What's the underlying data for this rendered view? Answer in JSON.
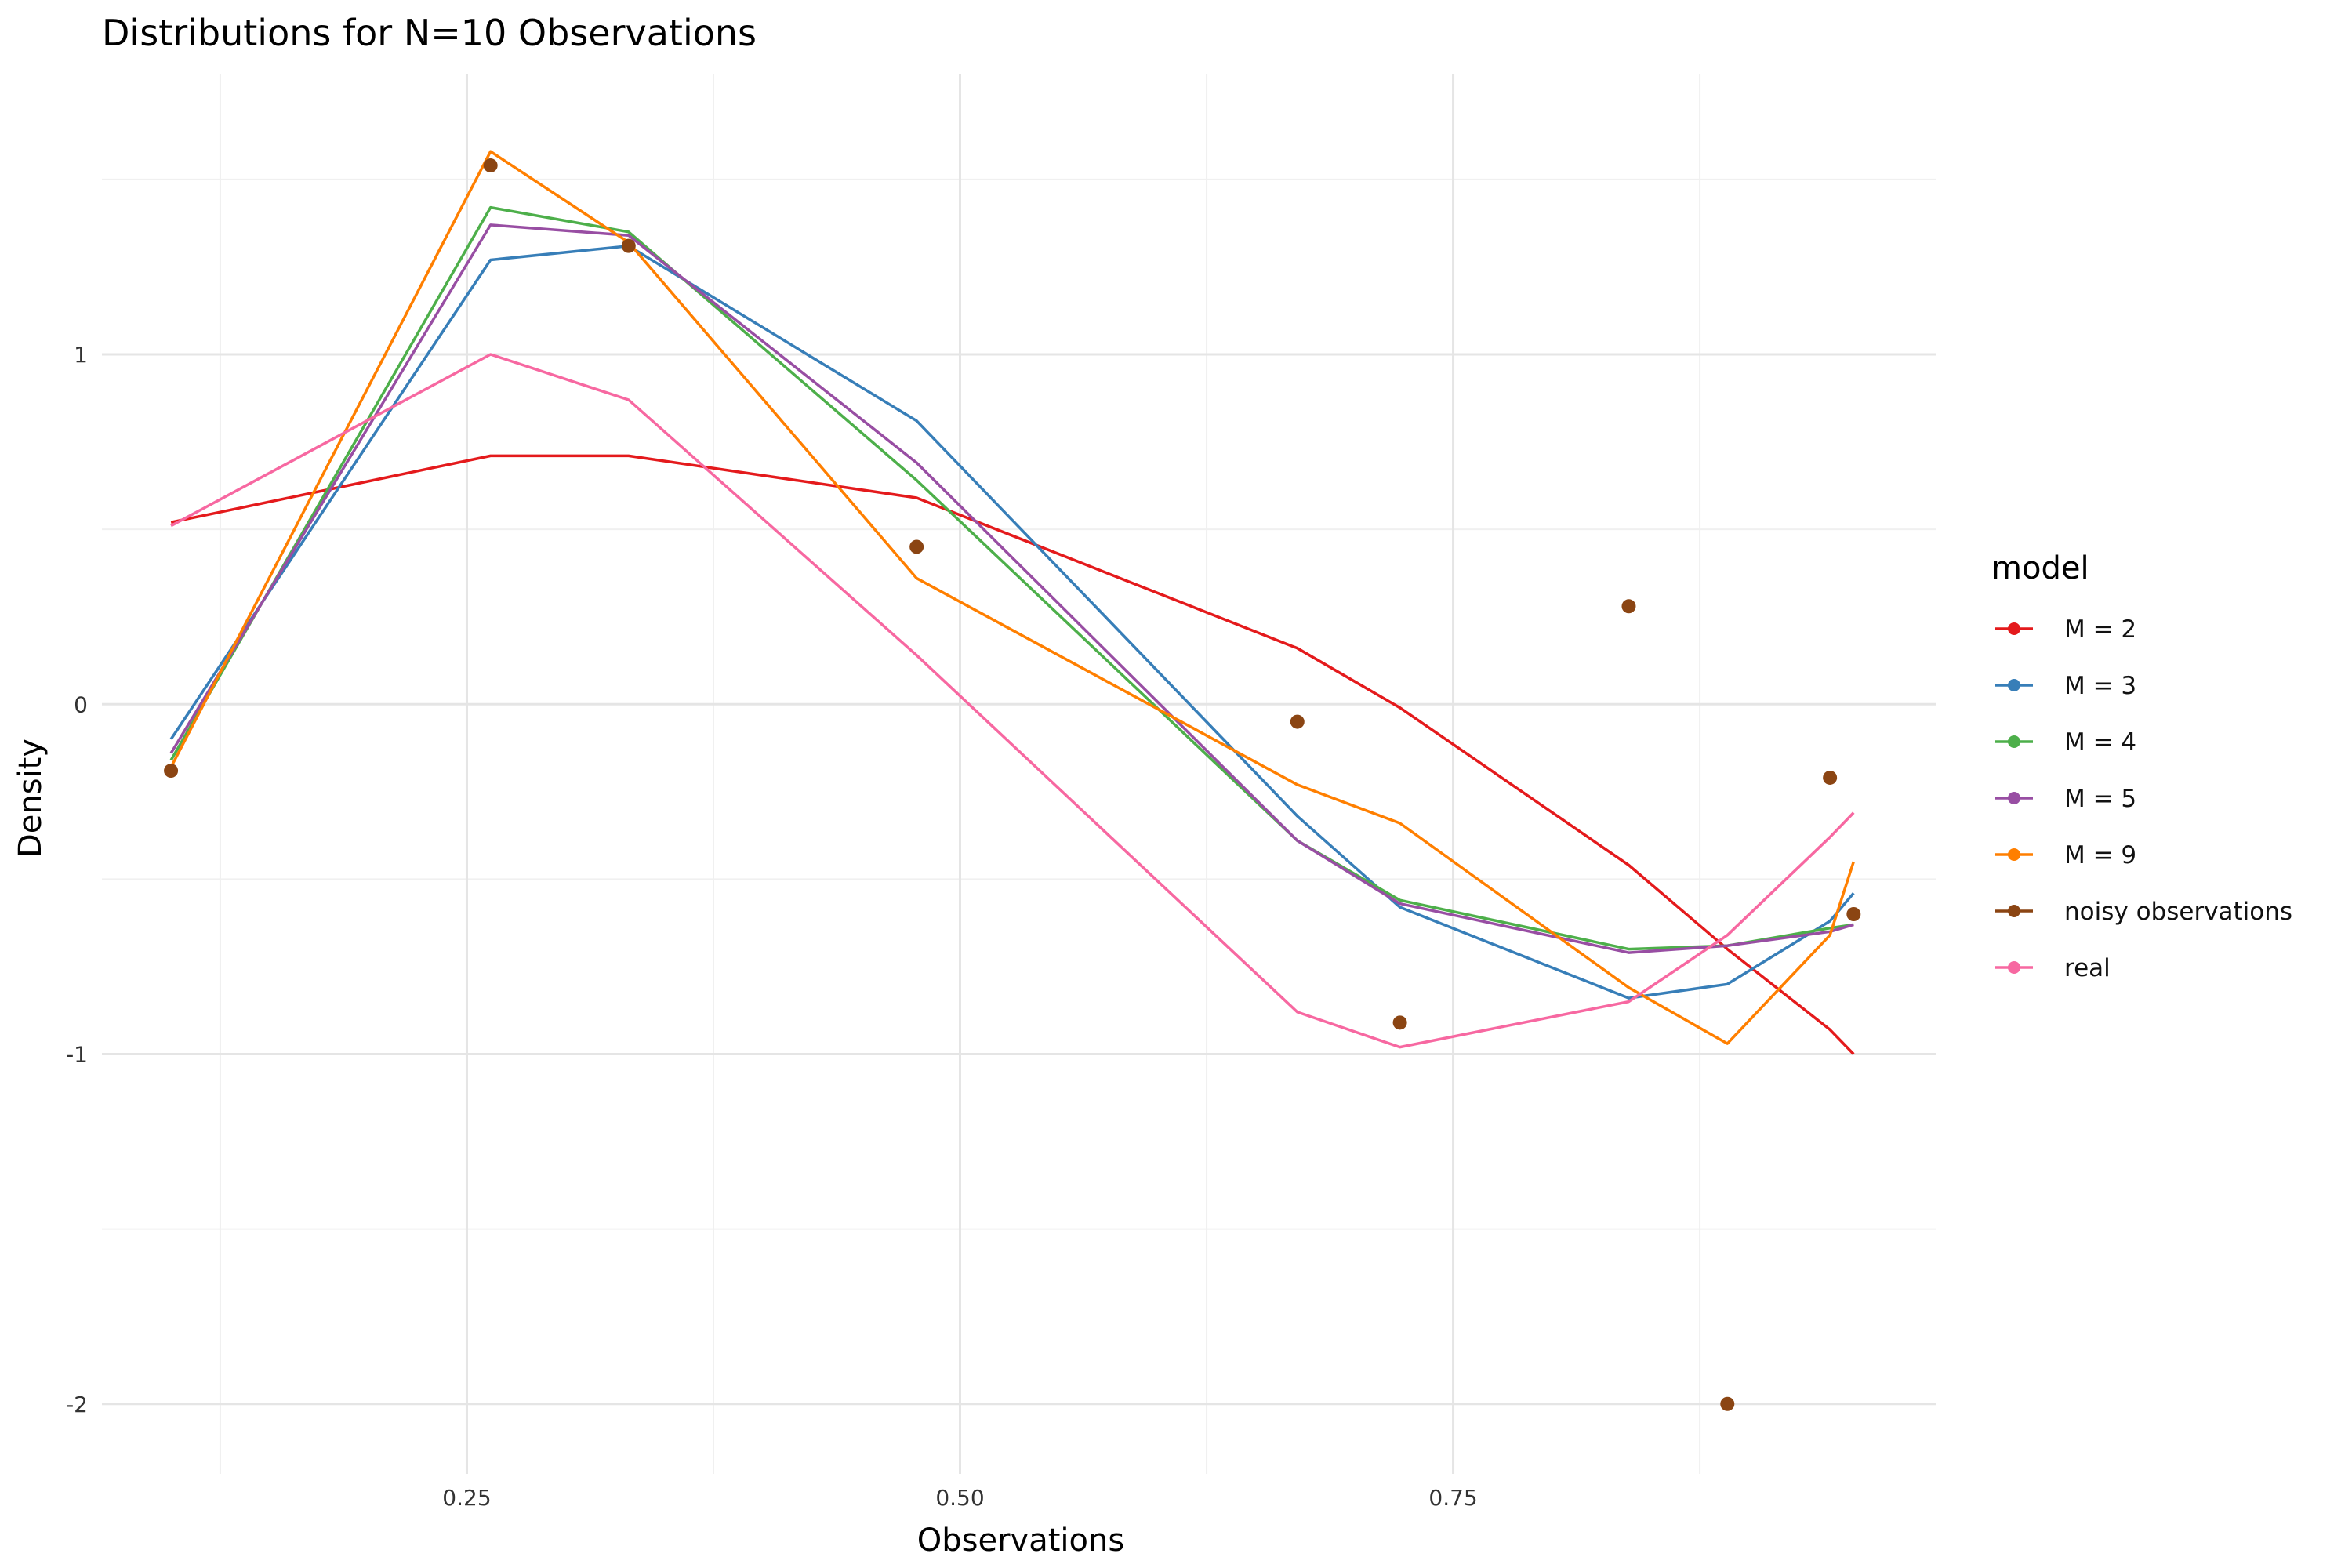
{
  "chart_data": {
    "type": "line",
    "title": "Distributions for N=10 Observations",
    "xlabel": "Observations",
    "ylabel": "Density",
    "xlim": [
      0.065,
      0.995
    ],
    "ylim": [
      -2.2,
      1.8
    ],
    "x_ticks": [
      0.25,
      0.5,
      0.75
    ],
    "x_tick_labels": [
      "0.25",
      "0.50",
      "0.75"
    ],
    "y_ticks": [
      1,
      0,
      -1,
      -2
    ],
    "y_tick_labels": [
      "1",
      "0",
      "-1",
      "-2"
    ],
    "grid": true,
    "legend_title": "model",
    "legend_position": "right",
    "series": [
      {
        "name": "M = 2",
        "color": "#e41a1c",
        "kind": "line",
        "x": [
          0.1,
          0.262,
          0.332,
          0.478,
          0.671,
          0.723,
          0.839,
          0.889,
          0.941,
          0.953
        ],
        "y": [
          0.52,
          0.71,
          0.71,
          0.59,
          0.16,
          -0.01,
          -0.46,
          -0.7,
          -0.93,
          -1.0
        ]
      },
      {
        "name": "M = 3",
        "color": "#377eb8",
        "kind": "line",
        "x": [
          0.1,
          0.262,
          0.332,
          0.478,
          0.671,
          0.723,
          0.839,
          0.889,
          0.941,
          0.953
        ],
        "y": [
          -0.1,
          1.27,
          1.31,
          0.81,
          -0.32,
          -0.58,
          -0.84,
          -0.8,
          -0.62,
          -0.54
        ]
      },
      {
        "name": "M = 4",
        "color": "#4daf4a",
        "kind": "line",
        "x": [
          0.1,
          0.262,
          0.332,
          0.478,
          0.671,
          0.723,
          0.839,
          0.889,
          0.941,
          0.953
        ],
        "y": [
          -0.16,
          1.42,
          1.35,
          0.64,
          -0.39,
          -0.56,
          -0.7,
          -0.69,
          -0.64,
          -0.63
        ]
      },
      {
        "name": "M = 5",
        "color": "#984ea3",
        "kind": "line",
        "x": [
          0.1,
          0.262,
          0.332,
          0.478,
          0.671,
          0.723,
          0.839,
          0.889,
          0.941,
          0.953
        ],
        "y": [
          -0.14,
          1.37,
          1.34,
          0.69,
          -0.39,
          -0.57,
          -0.71,
          -0.69,
          -0.65,
          -0.63
        ]
      },
      {
        "name": "M = 9",
        "color": "#ff7f00",
        "kind": "line",
        "x": [
          0.1,
          0.262,
          0.332,
          0.478,
          0.671,
          0.723,
          0.839,
          0.889,
          0.941,
          0.953
        ],
        "y": [
          -0.18,
          1.58,
          1.32,
          0.36,
          -0.23,
          -0.34,
          -0.81,
          -0.97,
          -0.66,
          -0.45
        ]
      },
      {
        "name": "noisy observations",
        "color": "#8b4513",
        "kind": "point",
        "x": [
          0.1,
          0.262,
          0.332,
          0.478,
          0.671,
          0.723,
          0.839,
          0.889,
          0.941,
          0.953
        ],
        "y": [
          -0.19,
          1.54,
          1.31,
          0.45,
          -0.05,
          -0.91,
          0.28,
          -2.0,
          -0.21,
          -0.6
        ]
      },
      {
        "name": "real",
        "color": "#f768a1",
        "kind": "line",
        "x": [
          0.1,
          0.262,
          0.332,
          0.478,
          0.671,
          0.723,
          0.839,
          0.889,
          0.941,
          0.953
        ],
        "y": [
          0.51,
          1.0,
          0.87,
          0.14,
          -0.88,
          -0.98,
          -0.85,
          -0.66,
          -0.38,
          -0.31
        ]
      }
    ]
  }
}
